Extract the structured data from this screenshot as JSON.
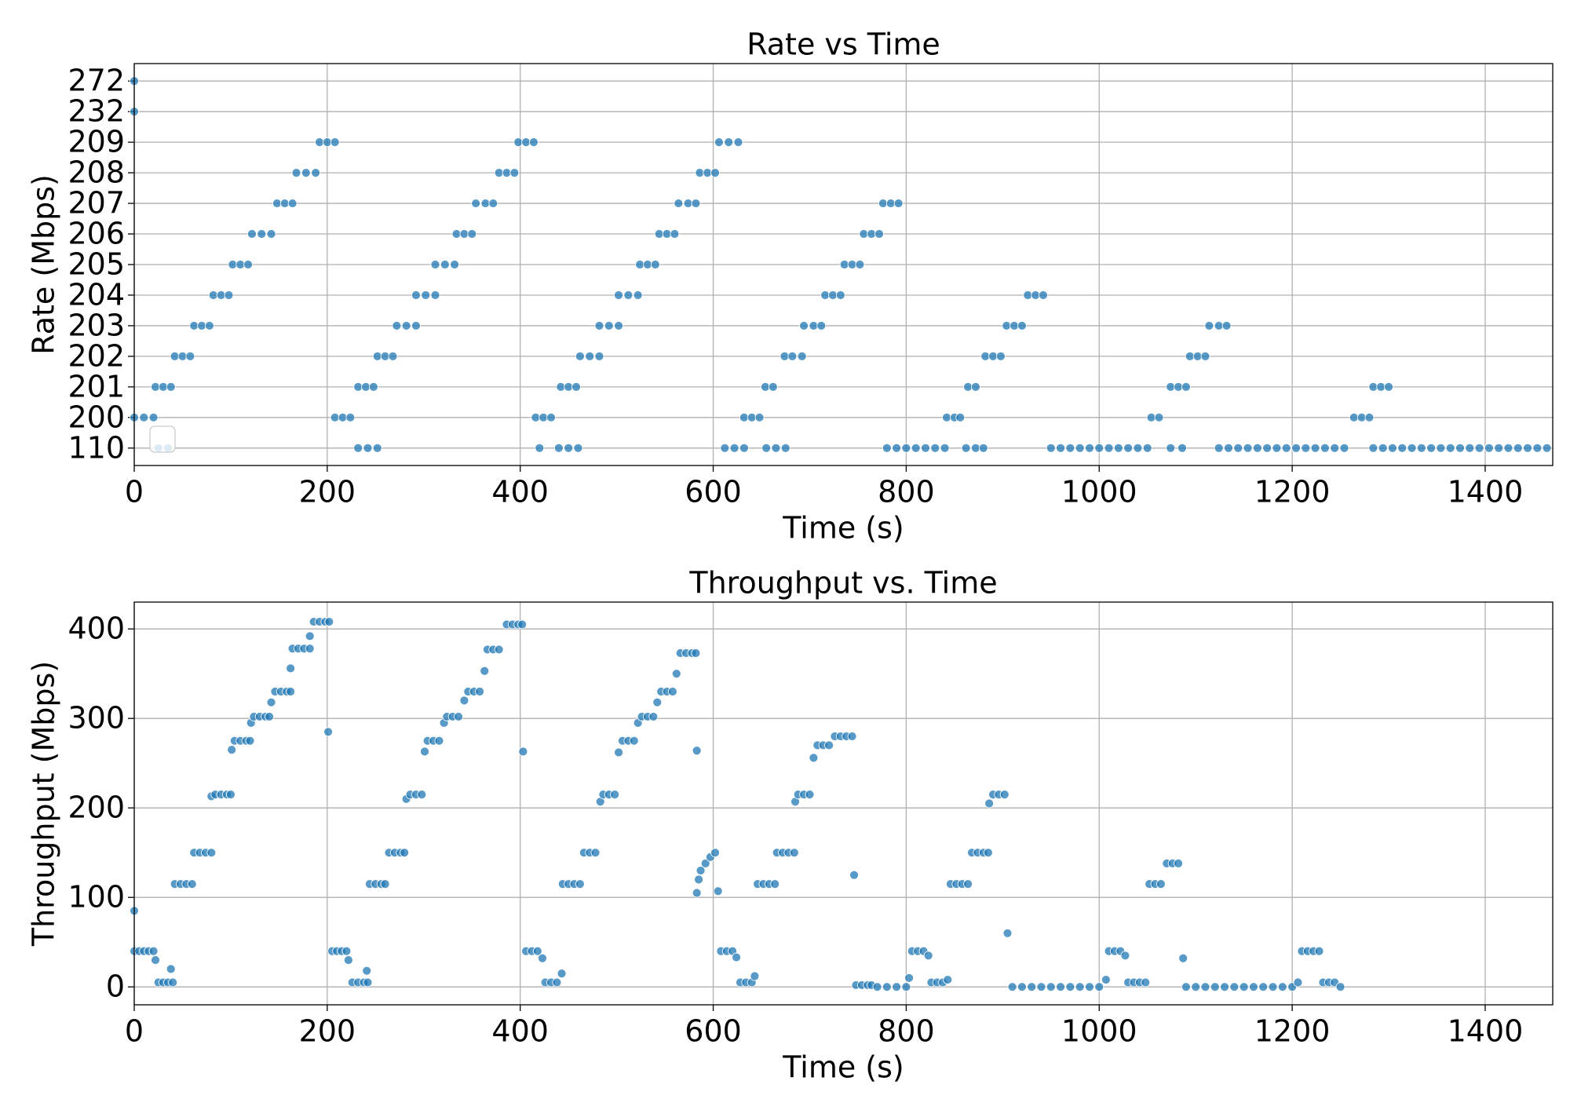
{
  "chart_data": [
    {
      "type": "scatter",
      "title": "Rate vs Time",
      "x_label": "Time (s)",
      "y_label": "Rate (Mbps)",
      "xlim": [
        0,
        1470
      ],
      "xticks": [
        0,
        200,
        400,
        600,
        800,
        1000,
        1200,
        1400
      ],
      "y_categories": [
        110,
        200,
        201,
        202,
        203,
        204,
        205,
        206,
        207,
        208,
        209,
        232,
        272
      ],
      "grid": true,
      "series": [
        {
          "color": "#1f77b4",
          "x": [
            0,
            0,
            0,
            10,
            20,
            25,
            35,
            22,
            30,
            38,
            42,
            50,
            58,
            62,
            70,
            78,
            82,
            90,
            98,
            102,
            110,
            118,
            122,
            132,
            142,
            148,
            156,
            164,
            168,
            178,
            188,
            192,
            200,
            208,
            208,
            216,
            224,
            232,
            240,
            248,
            232,
            242,
            252,
            252,
            260,
            268,
            272,
            282,
            292,
            292,
            302,
            312,
            312,
            322,
            332,
            334,
            342,
            350,
            354,
            364,
            372,
            378,
            386,
            394,
            398,
            406,
            414,
            416,
            424,
            432,
            420,
            440,
            450,
            460,
            442,
            450,
            458,
            462,
            472,
            482,
            482,
            492,
            502,
            502,
            512,
            522,
            524,
            532,
            540,
            544,
            552,
            560,
            564,
            574,
            582,
            586,
            594,
            602,
            606,
            616,
            626,
            612,
            622,
            632,
            655,
            665,
            675,
            632,
            640,
            648,
            654,
            662,
            674,
            682,
            692,
            694,
            704,
            712,
            716,
            724,
            732,
            736,
            744,
            752,
            756,
            764,
            772,
            776,
            784,
            792,
            780,
            790,
            800,
            810,
            820,
            830,
            840,
            862,
            872,
            880,
            842,
            850,
            856,
            864,
            872,
            882,
            890,
            898,
            904,
            912,
            920,
            926,
            934,
            942,
            950,
            960,
            970,
            980,
            990,
            1000,
            1010,
            1020,
            1030,
            1040,
            1050,
            1054,
            1062,
            1074,
            1082,
            1090,
            1074,
            1086,
            1094,
            1102,
            1110,
            1114,
            1124,
            1132,
            1124,
            1134,
            1144,
            1154,
            1164,
            1174,
            1184,
            1194,
            1204,
            1214,
            1224,
            1234,
            1244,
            1254,
            1264,
            1272,
            1280,
            1284,
            1292,
            1300,
            1284,
            1294,
            1304,
            1314,
            1324,
            1334,
            1344,
            1354,
            1364,
            1374,
            1384,
            1394,
            1404,
            1414,
            1424,
            1434,
            1444,
            1454,
            1464
          ],
          "values": [
            272,
            232,
            200,
            200,
            200,
            110,
            110,
            201,
            201,
            201,
            202,
            202,
            202,
            203,
            203,
            203,
            204,
            204,
            204,
            205,
            205,
            205,
            206,
            206,
            206,
            207,
            207,
            207,
            208,
            208,
            208,
            209,
            209,
            209,
            200,
            200,
            200,
            201,
            201,
            201,
            110,
            110,
            110,
            202,
            202,
            202,
            203,
            203,
            203,
            204,
            204,
            204,
            205,
            205,
            205,
            206,
            206,
            206,
            207,
            207,
            207,
            208,
            208,
            208,
            209,
            209,
            209,
            200,
            200,
            200,
            110,
            110,
            110,
            110,
            201,
            201,
            201,
            202,
            202,
            202,
            203,
            203,
            203,
            204,
            204,
            204,
            205,
            205,
            205,
            206,
            206,
            206,
            207,
            207,
            207,
            208,
            208,
            208,
            209,
            209,
            209,
            110,
            110,
            110,
            110,
            110,
            110,
            200,
            200,
            200,
            201,
            201,
            202,
            202,
            202,
            203,
            203,
            203,
            204,
            204,
            204,
            205,
            205,
            205,
            206,
            206,
            206,
            207,
            207,
            207,
            110,
            110,
            110,
            110,
            110,
            110,
            110,
            110,
            110,
            110,
            200,
            200,
            200,
            201,
            201,
            202,
            202,
            202,
            203,
            203,
            203,
            204,
            204,
            204,
            110,
            110,
            110,
            110,
            110,
            110,
            110,
            110,
            110,
            110,
            110,
            200,
            200,
            201,
            201,
            201,
            110,
            110,
            202,
            202,
            202,
            203,
            203,
            203,
            110,
            110,
            110,
            110,
            110,
            110,
            110,
            110,
            110,
            110,
            110,
            110,
            110,
            110,
            200,
            200,
            200,
            201,
            201,
            201,
            110,
            110,
            110,
            110,
            110,
            110,
            110,
            110,
            110,
            110,
            110,
            110,
            110,
            110,
            110,
            110,
            110,
            110,
            110
          ]
        }
      ]
    },
    {
      "type": "scatter",
      "title": "Throughput vs. Time",
      "x_label": "Time (s)",
      "y_label": "Throughput (Mbps)",
      "xlim": [
        0,
        1470
      ],
      "xticks": [
        0,
        200,
        400,
        600,
        800,
        1000,
        1200,
        1400
      ],
      "ylim": [
        -20,
        430
      ],
      "yticks": [
        0,
        100,
        200,
        300,
        400
      ],
      "grid": true,
      "series": [
        {
          "color": "#1f77b4",
          "x": [
            0,
            0,
            5,
            10,
            15,
            20,
            22,
            25,
            30,
            35,
            40,
            38,
            42,
            48,
            54,
            60,
            62,
            68,
            74,
            80,
            80,
            84,
            90,
            96,
            100,
            101,
            104,
            110,
            116,
            120,
            121,
            124,
            130,
            136,
            140,
            142,
            146,
            152,
            158,
            162,
            162,
            164,
            170,
            176,
            182,
            182,
            186,
            192,
            198,
            202,
            201,
            205,
            210,
            215,
            220,
            222,
            226,
            232,
            238,
            242,
            241,
            244,
            250,
            256,
            260,
            264,
            270,
            276,
            280,
            282,
            286,
            292,
            298,
            301,
            304,
            310,
            316,
            321,
            324,
            330,
            336,
            342,
            346,
            352,
            358,
            363,
            366,
            372,
            378,
            386,
            392,
            398,
            402,
            403,
            406,
            412,
            418,
            423,
            426,
            432,
            438,
            443,
            444,
            450,
            456,
            462,
            466,
            472,
            478,
            483,
            486,
            492,
            498,
            502,
            506,
            512,
            518,
            522,
            526,
            532,
            538,
            542,
            546,
            552,
            558,
            562,
            566,
            572,
            578,
            582,
            583,
            583,
            585,
            587,
            592,
            597,
            602,
            605,
            608,
            614,
            620,
            624,
            628,
            634,
            640,
            643,
            646,
            652,
            658,
            664,
            666,
            672,
            678,
            684,
            685,
            688,
            694,
            700,
            704,
            708,
            714,
            720,
            726,
            732,
            738,
            744,
            746,
            748,
            754,
            760,
            764,
            770,
            780,
            790,
            800,
            803,
            806,
            812,
            818,
            823,
            826,
            832,
            838,
            843,
            846,
            852,
            858,
            864,
            868,
            874,
            880,
            885,
            886,
            890,
            896,
            902,
            905,
            910,
            920,
            930,
            940,
            950,
            960,
            970,
            980,
            990,
            1000,
            1007,
            1010,
            1016,
            1022,
            1027,
            1030,
            1036,
            1042,
            1048,
            1052,
            1058,
            1064,
            1070,
            1076,
            1082,
            1087,
            1090,
            1100,
            1110,
            1120,
            1130,
            1140,
            1150,
            1160,
            1170,
            1180,
            1190,
            1200,
            1206,
            1210,
            1216,
            1222,
            1228,
            1232,
            1238,
            1244,
            1250
          ],
          "values": [
            85,
            40,
            40,
            40,
            40,
            40,
            30,
            5,
            5,
            5,
            5,
            20,
            115,
            115,
            115,
            115,
            150,
            150,
            150,
            150,
            213,
            215,
            215,
            215,
            215,
            265,
            275,
            275,
            275,
            275,
            295,
            302,
            302,
            302,
            302,
            318,
            330,
            330,
            330,
            330,
            356,
            378,
            378,
            378,
            378,
            392,
            408,
            408,
            408,
            408,
            285,
            40,
            40,
            40,
            40,
            30,
            5,
            5,
            5,
            5,
            18,
            115,
            115,
            115,
            115,
            150,
            150,
            150,
            150,
            210,
            215,
            215,
            215,
            263,
            275,
            275,
            275,
            295,
            302,
            302,
            302,
            320,
            330,
            330,
            330,
            353,
            377,
            377,
            377,
            405,
            405,
            405,
            405,
            263,
            40,
            40,
            40,
            32,
            5,
            5,
            5,
            15,
            115,
            115,
            115,
            115,
            150,
            150,
            150,
            207,
            215,
            215,
            215,
            262,
            275,
            275,
            275,
            295,
            302,
            302,
            302,
            318,
            330,
            330,
            330,
            350,
            373,
            373,
            373,
            373,
            264,
            105,
            120,
            130,
            138,
            145,
            150,
            107,
            40,
            40,
            40,
            33,
            5,
            5,
            5,
            12,
            115,
            115,
            115,
            115,
            150,
            150,
            150,
            150,
            207,
            215,
            215,
            215,
            256,
            270,
            270,
            270,
            280,
            280,
            280,
            280,
            125,
            2,
            2,
            2,
            2,
            0,
            0,
            0,
            0,
            10,
            40,
            40,
            40,
            35,
            5,
            5,
            5,
            8,
            115,
            115,
            115,
            115,
            150,
            150,
            150,
            150,
            205,
            215,
            215,
            215,
            60,
            0,
            0,
            0,
            0,
            0,
            0,
            0,
            0,
            0,
            0,
            8,
            40,
            40,
            40,
            35,
            5,
            5,
            5,
            5,
            115,
            115,
            115,
            138,
            138,
            138,
            32,
            0,
            0,
            0,
            0,
            0,
            0,
            0,
            0,
            0,
            0,
            0,
            0,
            5,
            40,
            40,
            40,
            40,
            5,
            5,
            5,
            0
          ]
        }
      ]
    }
  ]
}
